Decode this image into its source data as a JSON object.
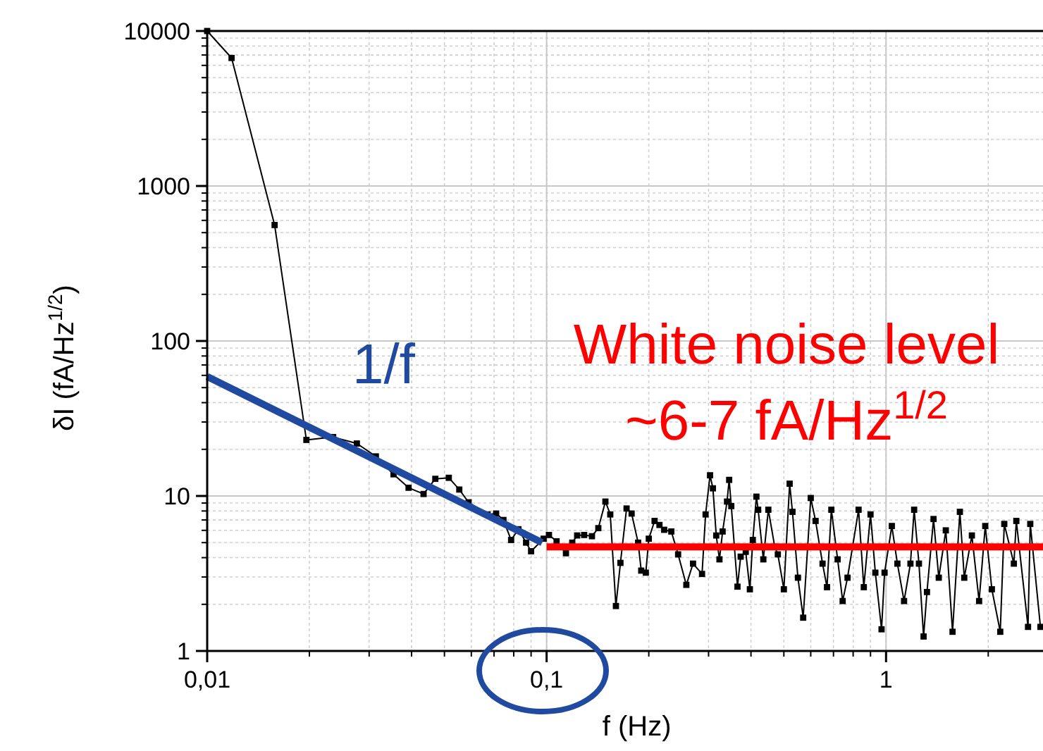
{
  "chart_data": {
    "type": "line",
    "xlabel": "f (Hz)",
    "ylabel": "δI (fA/Hz$^{1/2}$)",
    "log": "xy",
    "grid": true,
    "xlim": [
      0.01,
      2.9
    ],
    "ylim": [
      1,
      10000
    ],
    "xticks": [
      {
        "value": 0.01,
        "label": "0,01"
      },
      {
        "value": 0.1,
        "label": "0,1"
      },
      1
    ],
    "yticks": [
      1,
      10,
      100,
      1000,
      10000
    ],
    "annotations": [
      "White noise level",
      "~6-7 fA/Hz$^{1/2}$"
    ],
    "series": [
      {
        "color": "#000000",
        "marker": "square",
        "x": [
          0.01,
          0.0118,
          0.0158,
          0.0196,
          0.0235,
          0.0276,
          0.0314,
          0.0354,
          0.0392,
          0.0434,
          0.047,
          0.0515,
          0.0553,
          0.0589,
          0.067,
          0.071,
          0.0746,
          0.0786,
          0.0826,
          0.087,
          0.09,
          0.098,
          0.1016,
          0.107,
          0.114,
          0.119,
          0.123,
          0.129,
          0.136,
          0.142,
          0.149,
          0.154,
          0.16,
          0.165,
          0.172,
          0.178,
          0.186,
          0.19,
          0.196,
          0.2,
          0.208,
          0.215,
          0.222,
          0.233,
          0.244,
          0.258,
          0.27,
          0.287,
          0.294,
          0.303,
          0.309,
          0.316,
          0.323,
          0.33,
          0.34,
          0.345,
          0.35,
          0.365,
          0.373,
          0.386,
          0.397,
          0.405,
          0.415,
          0.42,
          0.435,
          0.45,
          0.47,
          0.48,
          0.5,
          0.52,
          0.53,
          0.55,
          0.57,
          0.6,
          0.62,
          0.65,
          0.67,
          0.69,
          0.72,
          0.745,
          0.77,
          0.83,
          0.86,
          0.9,
          0.93,
          0.97,
          0.99,
          1.04,
          1.08,
          1.13,
          1.18,
          1.21,
          1.25,
          1.29,
          1.32,
          1.38,
          1.43,
          1.5,
          1.57,
          1.65,
          1.7,
          1.79,
          1.88,
          1.96,
          2.05,
          2.17,
          2.23,
          2.38,
          2.42,
          2.62,
          2.66,
          2.85
        ],
        "values": [
          10000,
          6700,
          560,
          23,
          24,
          21.8,
          18,
          13.8,
          11.3,
          10.3,
          12.9,
          13.1,
          11,
          9.1,
          7.6,
          7.7,
          7,
          5.2,
          6.1,
          5,
          4.4,
          5.3,
          5.6,
          5.1,
          4.27,
          5,
          5.56,
          5.6,
          5.5,
          6.2,
          9.2,
          7.6,
          1.95,
          3.7,
          8.3,
          7.7,
          5,
          3.3,
          3.2,
          5.3,
          6.9,
          6.5,
          6.05,
          5.9,
          4.2,
          2.67,
          3.66,
          3.14,
          7.6,
          13.6,
          11.2,
          5.56,
          3.9,
          5.9,
          9.2,
          12.7,
          8.6,
          2.6,
          4.06,
          4.36,
          2.5,
          5.2,
          9.9,
          8.15,
          3.9,
          8.15,
          4.7,
          4.2,
          2.5,
          12,
          7.9,
          2.97,
          1.64,
          9.7,
          6.9,
          3.66,
          2.58,
          8.15,
          3.9,
          2.1,
          2.97,
          8.15,
          2.58,
          7.6,
          3.2,
          1.38,
          3.2,
          6.4,
          3.66,
          2.1,
          3.66,
          8.15,
          3.66,
          1.24,
          2.4,
          7.1,
          2.97,
          6,
          1.33,
          7.9,
          2.97,
          5.56,
          2.1,
          6.4,
          2.5,
          1.33,
          6.6,
          3.66,
          6.9,
          1.43,
          6.6,
          1.43
        ]
      },
      {
        "name": "1/f",
        "color": "#1f4aa0",
        "marker": "none",
        "x": [
          0.01,
          0.097
        ],
        "values": [
          59,
          5
        ]
      },
      {
        "color": "#ff0000",
        "marker": "none",
        "x": [
          0.1,
          2.9
        ],
        "values": [
          4.7,
          4.7
        ]
      }
    ]
  }
}
